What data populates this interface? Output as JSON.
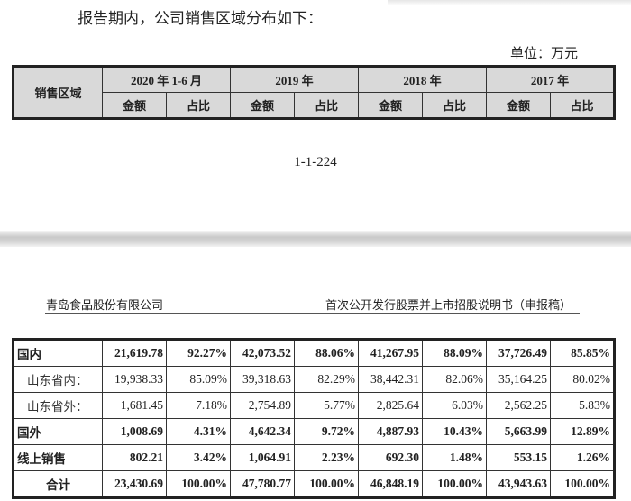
{
  "intro": "报告期内，公司销售区域分布如下：",
  "unit": "单位：万元",
  "header": {
    "region": "销售区域",
    "periods": [
      "2020 年 1-6 月",
      "2019 年",
      "2018 年",
      "2017 年"
    ],
    "amount": "金额",
    "ratio": "占比"
  },
  "page_number": "1-1-224",
  "next_page": {
    "company": "青岛食品股份有限公司",
    "doc_title": "首次公开发行股票并上市招股说明书（申报稿）"
  },
  "rows": [
    {
      "label": "国内",
      "bold": true,
      "values": [
        "21,619.78",
        "92.27%",
        "42,073.52",
        "88.06%",
        "41,267.95",
        "88.09%",
        "37,726.49",
        "85.85%"
      ]
    },
    {
      "label": "山东省内：",
      "bold": false,
      "values": [
        "19,938.33",
        "85.09%",
        "39,318.63",
        "82.29%",
        "38,442.31",
        "82.06%",
        "35,164.25",
        "80.02%"
      ]
    },
    {
      "label": "山东省外：",
      "bold": false,
      "values": [
        "1,681.45",
        "7.18%",
        "2,754.89",
        "5.77%",
        "2,825.64",
        "6.03%",
        "2,562.25",
        "5.83%"
      ]
    },
    {
      "label": "国外",
      "bold": true,
      "values": [
        "1,008.69",
        "4.31%",
        "4,642.34",
        "9.72%",
        "4,887.93",
        "10.43%",
        "5,663.99",
        "12.89%"
      ]
    },
    {
      "label": "线上销售",
      "bold": true,
      "values": [
        "802.21",
        "3.42%",
        "1,064.91",
        "2.23%",
        "692.30",
        "1.48%",
        "553.15",
        "1.26%"
      ]
    },
    {
      "label": "合计",
      "bold": true,
      "values": [
        "23,430.69",
        "100.00%",
        "47,780.77",
        "100.00%",
        "46,848.19",
        "100.00%",
        "43,943.63",
        "100.00%"
      ]
    }
  ]
}
